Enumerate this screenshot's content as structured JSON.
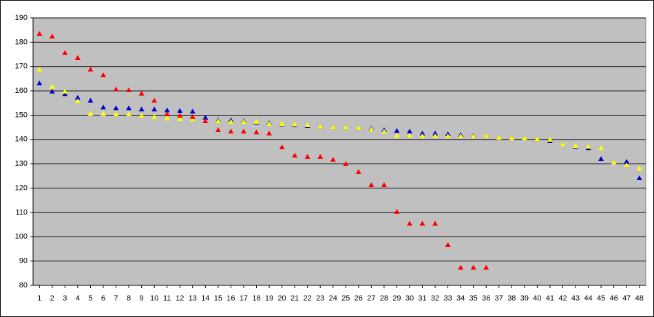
{
  "chart_data": {
    "type": "scatter",
    "x": [
      1,
      2,
      3,
      4,
      5,
      6,
      7,
      8,
      9,
      10,
      11,
      12,
      13,
      14,
      15,
      16,
      17,
      18,
      19,
      20,
      21,
      22,
      23,
      24,
      25,
      26,
      27,
      28,
      29,
      30,
      31,
      32,
      33,
      34,
      35,
      36,
      37,
      38,
      39,
      40,
      41,
      42,
      43,
      44,
      45,
      46,
      47,
      48
    ],
    "series": [
      {
        "color": "#0000cc",
        "values": [
          163.1,
          159.7,
          158.6,
          157.2,
          156,
          153.2,
          152.9,
          152.9,
          152.4,
          152.4,
          152,
          151.8,
          151.5,
          149,
          147.9,
          147.9,
          147.6,
          147,
          146.7,
          146.2,
          145.9,
          145.6,
          145.3,
          145,
          145,
          144.8,
          144.5,
          143.9,
          143.6,
          143.3,
          142.5,
          142.5,
          142.2,
          141.9,
          141.6,
          141.4,
          140.8,
          140.5,
          140.5,
          140.2,
          139.4,
          138,
          137.1,
          136.5,
          132,
          130.6,
          130.9,
          124.1
        ]
      },
      {
        "color": "#ffff00",
        "values": [
          168.8,
          161.7,
          159.7,
          155.8,
          150.7,
          150.7,
          150.4,
          150.4,
          149.8,
          149.3,
          148.7,
          148.4,
          148.4,
          147.6,
          147.6,
          147.3,
          147.3,
          147.3,
          146.4,
          146.4,
          146.2,
          145.9,
          145.3,
          145,
          145,
          144.8,
          144.2,
          143.3,
          141.6,
          141.6,
          141.4,
          141.4,
          141.4,
          141.4,
          141.4,
          141.4,
          140.8,
          140.5,
          140.5,
          140.2,
          139.9,
          138,
          137.4,
          137.1,
          136.5,
          130.6,
          129.5,
          128.1
        ]
      },
      {
        "color": "#ff0000",
        "values": [
          183.5,
          182.4,
          175.6,
          173.6,
          168.8,
          166.5,
          160.6,
          160.3,
          158.9,
          156,
          150.4,
          149.8,
          149.3,
          147.6,
          143.9,
          143.3,
          143.3,
          143,
          142.5,
          136.8,
          133.4,
          132.9,
          132.9,
          131.7,
          130,
          126.7,
          121.3,
          121.3,
          110.3,
          105.4,
          105.4,
          105.4,
          96.7,
          87.3,
          87.3,
          87.3,
          null,
          null,
          null,
          null,
          null,
          null,
          null,
          null,
          null,
          null,
          null,
          null
        ]
      }
    ],
    "xlim": [
      0.5,
      48.5
    ],
    "xticks": [
      1,
      2,
      3,
      4,
      5,
      6,
      7,
      8,
      9,
      10,
      11,
      12,
      13,
      14,
      15,
      16,
      17,
      18,
      19,
      20,
      21,
      22,
      23,
      24,
      25,
      26,
      27,
      28,
      29,
      30,
      31,
      32,
      33,
      34,
      35,
      36,
      37,
      38,
      39,
      40,
      41,
      42,
      43,
      44,
      45,
      46,
      47,
      48
    ],
    "ylim": [
      80,
      190
    ],
    "yticks": [
      80,
      90,
      100,
      110,
      120,
      130,
      140,
      150,
      160,
      170,
      180,
      190
    ],
    "grid": true,
    "background": "#c0c0c0"
  }
}
